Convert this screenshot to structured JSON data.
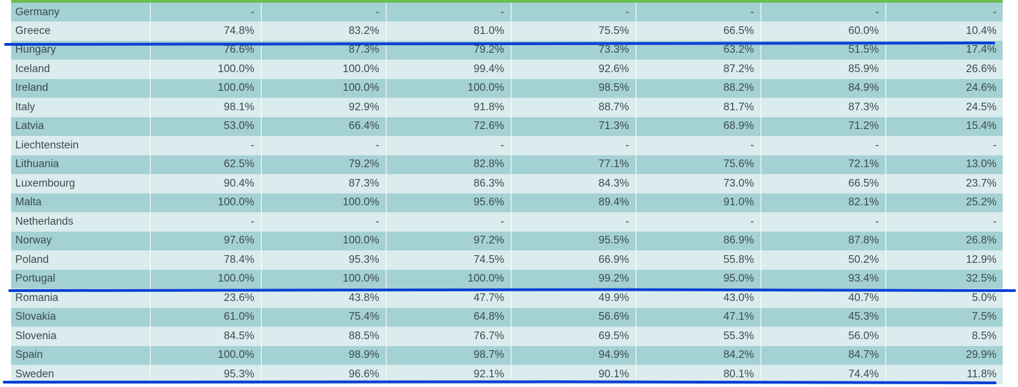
{
  "accent_color": "#6bbf4e",
  "row_colors": {
    "dark": "#a4d1d4",
    "light": "#daeced"
  },
  "annotation_color": "#0a3fd6",
  "rows": [
    {
      "country": "Germany",
      "values": [
        "-",
        "-",
        "-",
        "-",
        "-",
        "-",
        "-"
      ],
      "shade": "dark"
    },
    {
      "country": "Greece",
      "values": [
        "74.8%",
        "83.2%",
        "81.0%",
        "75.5%",
        "66.5%",
        "60.0%",
        "10.4%"
      ],
      "shade": "light"
    },
    {
      "country": "Hungary",
      "values": [
        "76.6%",
        "87.3%",
        "79.2%",
        "73.3%",
        "63.2%",
        "51.5%",
        "17.4%"
      ],
      "shade": "dark"
    },
    {
      "country": "Iceland",
      "values": [
        "100.0%",
        "100.0%",
        "99.4%",
        "92.6%",
        "87.2%",
        "85.9%",
        "26.6%"
      ],
      "shade": "light"
    },
    {
      "country": "Ireland",
      "values": [
        "100.0%",
        "100.0%",
        "100.0%",
        "98.5%",
        "88.2%",
        "84.9%",
        "24.6%"
      ],
      "shade": "dark"
    },
    {
      "country": "Italy",
      "values": [
        "98.1%",
        "92.9%",
        "91.8%",
        "88.7%",
        "81.7%",
        "87.3%",
        "24.5%"
      ],
      "shade": "light"
    },
    {
      "country": "Latvia",
      "values": [
        "53.0%",
        "66.4%",
        "72.6%",
        "71.3%",
        "68.9%",
        "71.2%",
        "15.4%"
      ],
      "shade": "dark"
    },
    {
      "country": "Liechtenstein",
      "values": [
        "-",
        "-",
        "-",
        "-",
        "-",
        "-",
        "-"
      ],
      "shade": "light"
    },
    {
      "country": "Lithuania",
      "values": [
        "62.5%",
        "79.2%",
        "82.8%",
        "77.1%",
        "75.6%",
        "72.1%",
        "13.0%"
      ],
      "shade": "dark"
    },
    {
      "country": "Luxembourg",
      "values": [
        "90.4%",
        "87.3%",
        "86.3%",
        "84.3%",
        "73.0%",
        "66.5%",
        "23.7%"
      ],
      "shade": "light"
    },
    {
      "country": "Malta",
      "values": [
        "100.0%",
        "100.0%",
        "95.6%",
        "89.4%",
        "91.0%",
        "82.1%",
        "25.2%"
      ],
      "shade": "dark"
    },
    {
      "country": "Netherlands",
      "values": [
        "-",
        "-",
        "-",
        "-",
        "-",
        "-",
        "-"
      ],
      "shade": "light"
    },
    {
      "country": "Norway",
      "values": [
        "97.6%",
        "100.0%",
        "97.2%",
        "95.5%",
        "86.9%",
        "87.8%",
        "26.8%"
      ],
      "shade": "dark"
    },
    {
      "country": "Poland",
      "values": [
        "78.4%",
        "95.3%",
        "74.5%",
        "66.9%",
        "55.8%",
        "50.2%",
        "12.9%"
      ],
      "shade": "light"
    },
    {
      "country": "Portugal",
      "values": [
        "100.0%",
        "100.0%",
        "100.0%",
        "99.2%",
        "95.0%",
        "93.4%",
        "32.5%"
      ],
      "shade": "dark"
    },
    {
      "country": "Romania",
      "values": [
        "23.6%",
        "43.8%",
        "47.7%",
        "49.9%",
        "43.0%",
        "40.7%",
        "5.0%"
      ],
      "shade": "light"
    },
    {
      "country": "Slovakia",
      "values": [
        "61.0%",
        "75.4%",
        "64.8%",
        "56.6%",
        "47.1%",
        "45.3%",
        "7.5%"
      ],
      "shade": "dark"
    },
    {
      "country": "Slovenia",
      "values": [
        "84.5%",
        "88.5%",
        "76.7%",
        "69.5%",
        "55.3%",
        "56.0%",
        "8.5%"
      ],
      "shade": "light"
    },
    {
      "country": "Spain",
      "values": [
        "100.0%",
        "98.9%",
        "98.7%",
        "94.9%",
        "84.2%",
        "84.7%",
        "29.9%"
      ],
      "shade": "dark"
    },
    {
      "country": "Sweden",
      "values": [
        "95.3%",
        "96.6%",
        "92.1%",
        "90.1%",
        "80.1%",
        "74.4%",
        "11.8%"
      ],
      "shade": "light"
    }
  ]
}
